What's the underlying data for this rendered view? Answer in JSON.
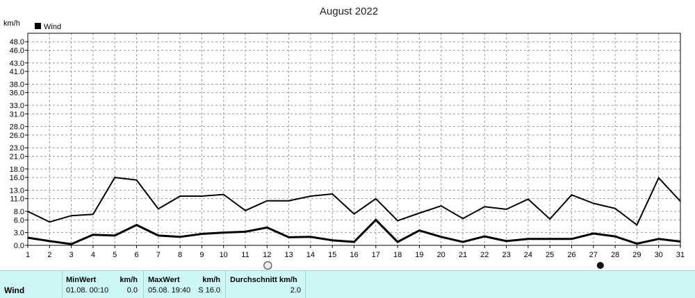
{
  "chart_data": {
    "type": "line",
    "title": "August 2022",
    "ylabel": "km/h",
    "legend": {
      "label": "Wind",
      "placement": "top-left"
    },
    "x": [
      1,
      2,
      3,
      4,
      5,
      6,
      7,
      8,
      9,
      10,
      11,
      12,
      13,
      14,
      15,
      16,
      17,
      18,
      19,
      20,
      21,
      22,
      23,
      24,
      25,
      26,
      27,
      28,
      29,
      30,
      31
    ],
    "yticks": [
      0.0,
      3.0,
      6.0,
      8.0,
      11.0,
      13.0,
      16.0,
      18.0,
      21.0,
      23.0,
      26.0,
      28.0,
      31.0,
      33.0,
      36.0,
      38.0,
      41.0,
      43.0,
      46.0,
      48.0
    ],
    "ylim": [
      0,
      50
    ],
    "grid": true,
    "series": [
      {
        "name": "",
        "values": [
          8.0,
          5.5,
          7.0,
          7.3,
          16.0,
          15.4,
          8.6,
          11.6,
          11.6,
          12.0,
          8.2,
          10.5,
          10.5,
          11.6,
          12.1,
          7.4,
          11.0,
          5.8,
          7.6,
          9.3,
          6.3,
          9.1,
          8.5,
          10.9,
          6.2,
          11.9,
          9.9,
          8.7,
          4.8,
          15.9,
          10.4
        ]
      },
      {
        "name": "",
        "values": [
          1.8,
          1.0,
          0.3,
          2.5,
          2.3,
          4.8,
          2.3,
          2.0,
          2.7,
          3.0,
          3.2,
          4.2,
          1.9,
          2.0,
          1.2,
          0.8,
          6.0,
          0.8,
          3.5,
          2.0,
          0.8,
          2.1,
          1.0,
          1.5,
          1.5,
          1.5,
          2.8,
          2.1,
          0.4,
          1.5,
          0.9
        ]
      }
    ],
    "markers": [
      {
        "x": 12,
        "icon": "full-moon-icon"
      },
      {
        "x": 27,
        "icon": "new-moon-icon"
      }
    ],
    "colors": {
      "line": "#000000",
      "grid": "#999999",
      "table_bg": "#ccf7f5"
    }
  },
  "stats": {
    "series": "Wind",
    "min_header": "MinWert",
    "min_unit": "km/h",
    "min_time": "01.08.  00:10",
    "min_value": "0.0",
    "max_header": "MaxWert",
    "max_unit": "km/h",
    "max_time": "05.08.  19:40",
    "max_value": "S 16.0",
    "avg_header": "Durchschnitt km/h",
    "avg_value": "2.0"
  }
}
